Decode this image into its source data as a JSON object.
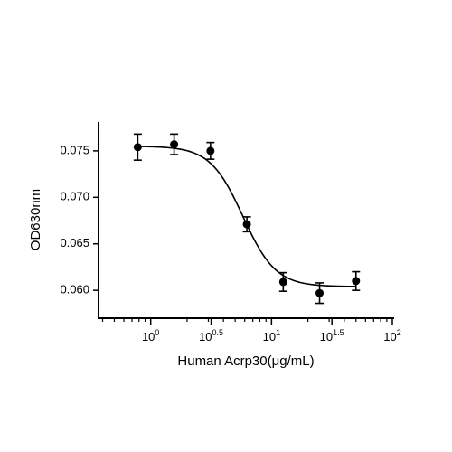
{
  "chart_data": {
    "type": "scatter",
    "x_label": "Human Acrp30(μg/mL)",
    "y_label": "OD630nm",
    "x_scale": "log",
    "x": [
      0.78125,
      1.5625,
      3.125,
      6.25,
      12.5,
      25,
      50
    ],
    "series": [
      {
        "color": "#000000",
        "values": [
          0.0754,
          0.0757,
          0.075,
          0.0671,
          0.0609,
          0.0597,
          0.061
        ],
        "errors": [
          0.0014,
          0.0011,
          0.0009,
          0.0008,
          0.001,
          0.0011,
          0.001
        ]
      }
    ],
    "fit": {
      "top": 0.0755,
      "bottom": 0.0604,
      "ec50": 5.8,
      "hill": 3.2
    },
    "xlim": [
      0.37,
      100
    ],
    "ylim": [
      0.057,
      0.0781
    ],
    "xticks": [
      {
        "value": 1,
        "label": "10",
        "superscript": "0"
      },
      {
        "value": 3.1623,
        "label": "10",
        "superscript": "0.5"
      },
      {
        "value": 10,
        "label": "10",
        "superscript": "1"
      },
      {
        "value": 31.623,
        "label": "10",
        "superscript": "1.5"
      },
      {
        "value": 100,
        "label": "10",
        "superscript": "2"
      }
    ],
    "xminorticks": [
      0.4,
      0.5,
      0.6,
      0.7,
      0.8,
      0.9,
      2,
      3,
      4,
      5,
      6,
      7,
      8,
      9,
      20,
      30,
      40,
      50,
      60,
      70,
      80,
      90
    ],
    "yticks": [
      {
        "value": 0.06,
        "label": "0.060"
      },
      {
        "value": 0.065,
        "label": "0.065"
      },
      {
        "value": 0.07,
        "label": "0.070"
      },
      {
        "value": 0.075,
        "label": "0.075"
      }
    ]
  }
}
